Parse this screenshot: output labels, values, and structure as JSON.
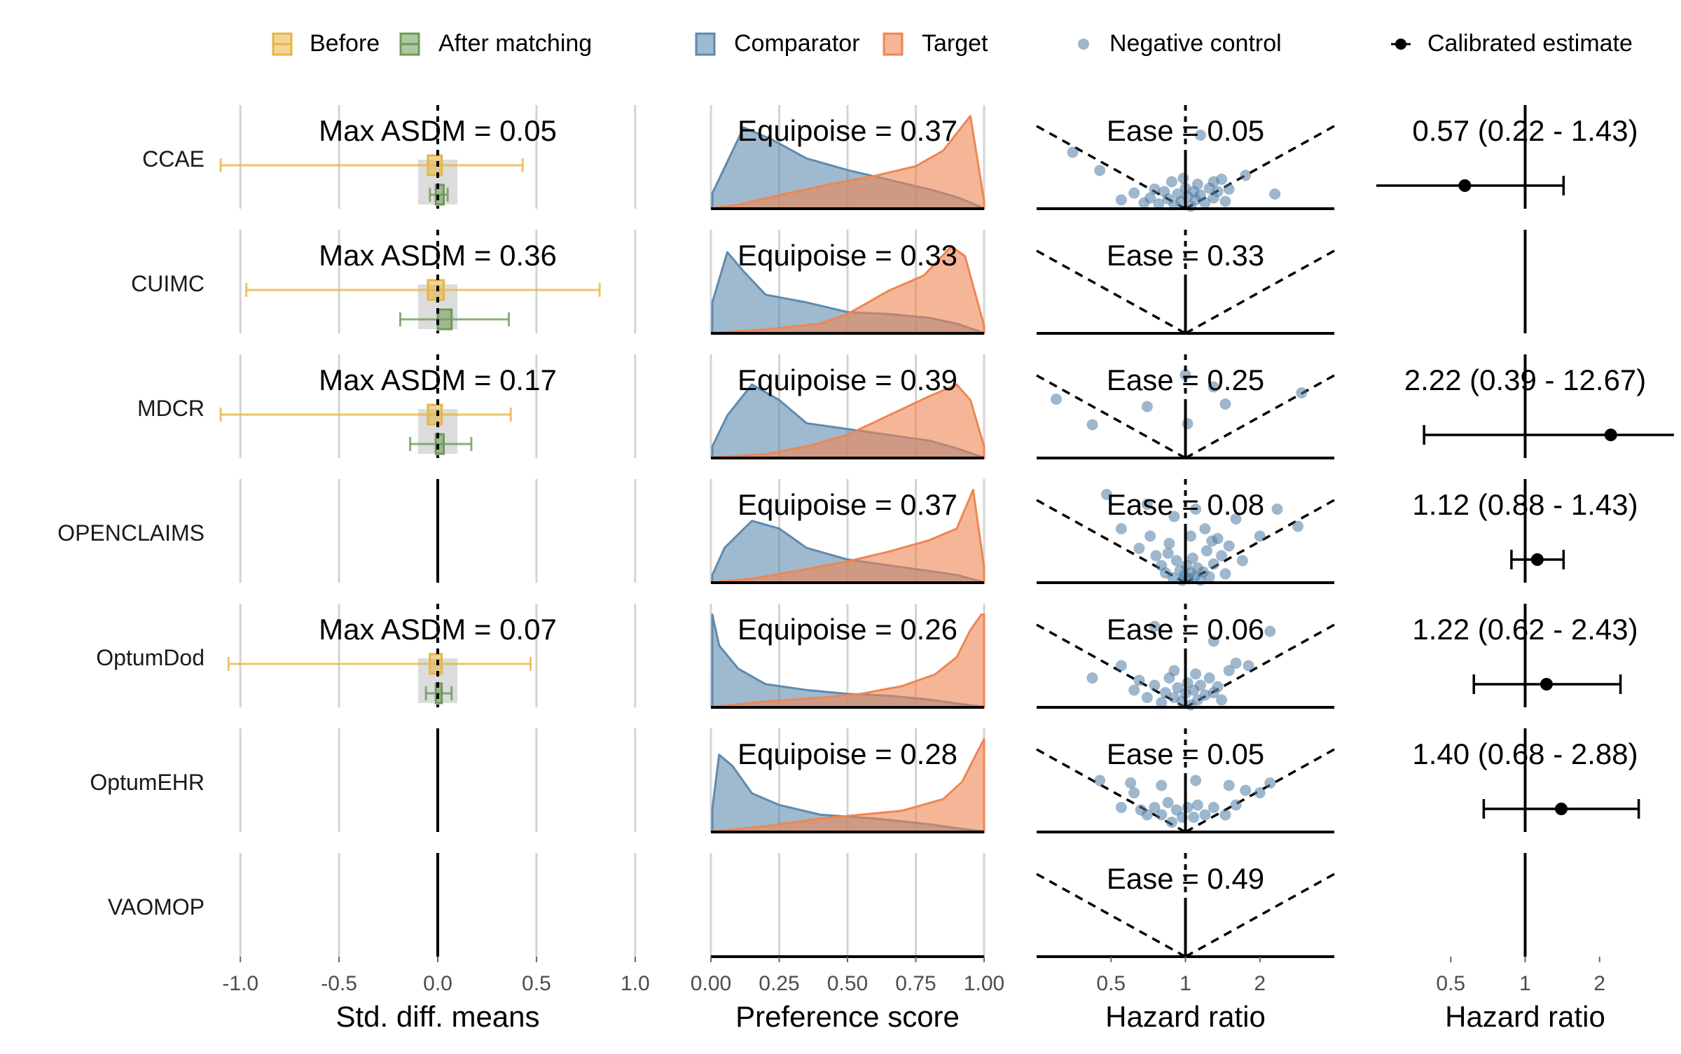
{
  "legends": {
    "balance": [
      {
        "label": "Before",
        "color": "#E8B542"
      },
      {
        "label": "After matching",
        "color": "#6E9A57"
      }
    ],
    "ps": [
      {
        "label": "Comparator",
        "color": "#5F8AAE"
      },
      {
        "label": "Target",
        "color": "#EE8653"
      }
    ],
    "nc": {
      "label": "Negative control",
      "color": "#4F7BA3"
    },
    "est": {
      "label": "Calibrated estimate",
      "color": "#000000"
    }
  },
  "axes": {
    "balance": {
      "xlabel": "Std. diff. means",
      "range": [
        -1.1,
        1.1
      ],
      "ticks": [
        -1.0,
        -0.5,
        0.0,
        0.5,
        1.0
      ],
      "tick_labels": [
        "-1.0",
        "-0.5",
        "0.0",
        "0.5",
        "1.0"
      ]
    },
    "ps": {
      "xlabel": "Preference score",
      "range": [
        0,
        1
      ],
      "ticks": [
        0,
        0.25,
        0.5,
        0.75,
        1
      ],
      "tick_labels": [
        "0.00",
        "0.25",
        "0.50",
        "0.75",
        "1.00"
      ]
    },
    "nc": {
      "xlabel": "Hazard ratio",
      "log_scale": true,
      "range": [
        0.25,
        4.0
      ],
      "ticks": [
        0.5,
        1,
        2
      ],
      "tick_labels": [
        "0.5",
        "1",
        "2"
      ]
    },
    "est": {
      "xlabel": "Hazard ratio",
      "log_scale": true,
      "range": [
        0.25,
        4.0
      ],
      "ticks": [
        0.5,
        1,
        2
      ],
      "tick_labels": [
        "0.5",
        "1",
        "2"
      ]
    }
  },
  "chart_data": {
    "type": "multi-panel",
    "rows": [
      {
        "name": "CCAE",
        "balance": {
          "label": "Max ASDM = 0.05",
          "before": {
            "box": [
              -0.05,
              0.02
            ],
            "range": [
              -1.1,
              0.43
            ]
          },
          "after": {
            "box": [
              -0.01,
              0.03
            ],
            "range": [
              -0.04,
              0.05
            ]
          }
        },
        "ps": {
          "label": "Equipoise = 0.37",
          "comparator": [
            0.005,
            0.4,
            0.12,
            2.1,
            0.22,
            1.8,
            0.35,
            1.3,
            0.5,
            1.0,
            0.65,
            0.75,
            0.8,
            0.5,
            0.9,
            0.3,
            1.0,
            0.01
          ],
          "target": [
            0.005,
            0.01,
            0.1,
            0.1,
            0.25,
            0.35,
            0.45,
            0.65,
            0.6,
            0.85,
            0.75,
            1.1,
            0.85,
            1.5,
            0.95,
            2.4,
            1.0,
            0.2
          ]
        },
        "nc": {
          "label": "Ease = 0.05",
          "points": [
            [
              0.35,
              1.15
            ],
            [
              0.45,
              0.78
            ],
            [
              0.55,
              0.18
            ],
            [
              0.62,
              0.32
            ],
            [
              0.68,
              0.12
            ],
            [
              0.72,
              0.22
            ],
            [
              0.78,
              0.1
            ],
            [
              0.82,
              0.35
            ],
            [
              0.85,
              0.2
            ],
            [
              0.88,
              0.55
            ],
            [
              0.9,
              0.08
            ],
            [
              0.93,
              0.3
            ],
            [
              0.96,
              0.15
            ],
            [
              1.0,
              0.42
            ],
            [
              1.02,
              0.25
            ],
            [
              1.05,
              0.05
            ],
            [
              1.08,
              0.35
            ],
            [
              1.1,
              0.18
            ],
            [
              1.12,
              0.5
            ],
            [
              1.15,
              0.28
            ],
            [
              1.2,
              0.12
            ],
            [
              1.25,
              0.42
            ],
            [
              1.3,
              0.22
            ],
            [
              1.35,
              0.35
            ],
            [
              1.4,
              0.6
            ],
            [
              1.45,
              0.15
            ],
            [
              1.5,
              0.4
            ],
            [
              1.3,
              0.55
            ],
            [
              0.75,
              0.4
            ],
            [
              1.75,
              0.68
            ],
            [
              2.3,
              0.3
            ],
            [
              1.15,
              1.5
            ],
            [
              0.98,
              0.62
            ]
          ]
        },
        "est": {
          "label": "0.57 (0.22 - 1.43)",
          "hr": 0.57,
          "lo": 0.22,
          "hi": 1.43
        }
      },
      {
        "name": "CUIMC",
        "balance": {
          "label": "Max ASDM = 0.36",
          "before": {
            "box": [
              -0.05,
              0.03
            ],
            "range": [
              -0.97,
              0.82
            ]
          },
          "after": {
            "box": [
              0.0,
              0.07
            ],
            "range": [
              -0.19,
              0.36
            ]
          }
        },
        "ps": {
          "label": "Equipoise = 0.33",
          "comparator": [
            0.005,
            0.8,
            0.06,
            2.1,
            0.12,
            1.6,
            0.2,
            1.0,
            0.35,
            0.8,
            0.5,
            0.55,
            0.65,
            0.5,
            0.8,
            0.4,
            0.9,
            0.25,
            1.0,
            0.01
          ],
          "target": [
            0.005,
            0.01,
            0.2,
            0.1,
            0.4,
            0.25,
            0.5,
            0.5,
            0.65,
            1.1,
            0.78,
            1.5,
            0.88,
            2.25,
            0.93,
            2.0,
            1.0,
            0.2
          ]
        },
        "nc": {
          "label": "Ease = 0.33",
          "points": []
        },
        "est": null
      },
      {
        "name": "MDCR",
        "balance": {
          "label": "Max ASDM = 0.17",
          "before": {
            "box": [
              -0.05,
              0.02
            ],
            "range": [
              -1.1,
              0.37
            ]
          },
          "after": {
            "box": [
              -0.01,
              0.03
            ],
            "range": [
              -0.14,
              0.17
            ]
          }
        },
        "ps": {
          "label": "Equipoise = 0.39",
          "comparator": [
            0.005,
            0.3,
            0.06,
            1.1,
            0.15,
            1.9,
            0.25,
            1.5,
            0.35,
            0.9,
            0.5,
            0.75,
            0.65,
            0.6,
            0.8,
            0.45,
            0.9,
            0.25,
            1.0,
            0.01
          ],
          "target": [
            0.005,
            0.01,
            0.2,
            0.1,
            0.35,
            0.3,
            0.5,
            0.6,
            0.65,
            1.1,
            0.8,
            1.6,
            0.9,
            1.9,
            0.95,
            1.5,
            1.0,
            0.3
          ]
        },
        "nc": {
          "label": "Ease = 0.25",
          "points": [
            [
              0.3,
              1.2
            ],
            [
              0.42,
              0.68
            ],
            [
              0.7,
              1.05
            ],
            [
              1.02,
              0.7
            ],
            [
              1.0,
              1.7
            ],
            [
              1.3,
              1.45
            ],
            [
              2.95,
              1.33
            ],
            [
              1.45,
              1.1
            ]
          ]
        },
        "est": {
          "label": "2.22 (0.39 - 12.67)",
          "hr": 2.22,
          "lo": 0.39,
          "hi": 12.67
        }
      },
      {
        "name": "OPENCLAIMS",
        "balance": null,
        "ps": {
          "label": "Equipoise = 0.37",
          "comparator": [
            0.005,
            0.2,
            0.05,
            0.9,
            0.15,
            1.6,
            0.25,
            1.4,
            0.35,
            0.9,
            0.5,
            0.6,
            0.65,
            0.45,
            0.8,
            0.3,
            0.9,
            0.2,
            1.0,
            0.01
          ],
          "target": [
            0.005,
            0.01,
            0.15,
            0.1,
            0.35,
            0.35,
            0.5,
            0.55,
            0.65,
            0.8,
            0.8,
            1.1,
            0.9,
            1.4,
            0.96,
            2.4,
            1.0,
            0.4
          ]
        },
        "nc": {
          "label": "Ease = 0.08",
          "points": [
            [
              0.48,
              1.8
            ],
            [
              0.55,
              1.1
            ],
            [
              0.65,
              0.7
            ],
            [
              0.72,
              0.95
            ],
            [
              0.76,
              0.55
            ],
            [
              0.8,
              0.35
            ],
            [
              0.83,
              0.2
            ],
            [
              0.86,
              0.8
            ],
            [
              0.89,
              0.1
            ],
            [
              0.92,
              0.45
            ],
            [
              0.95,
              0.25
            ],
            [
              0.97,
              0.05
            ],
            [
              0.99,
              0.15
            ],
            [
              1.01,
              0.35
            ],
            [
              1.03,
              0.08
            ],
            [
              1.05,
              0.2
            ],
            [
              1.07,
              0.5
            ],
            [
              1.09,
              0.12
            ],
            [
              1.12,
              0.3
            ],
            [
              1.15,
              0.05
            ],
            [
              1.18,
              0.22
            ],
            [
              1.22,
              0.65
            ],
            [
              1.25,
              0.12
            ],
            [
              1.3,
              0.38
            ],
            [
              1.35,
              0.9
            ],
            [
              1.4,
              0.55
            ],
            [
              1.45,
              0.18
            ],
            [
              1.5,
              0.75
            ],
            [
              1.7,
              0.45
            ],
            [
              2.0,
              0.95
            ],
            [
              2.35,
              1.5
            ],
            [
              2.85,
              1.15
            ],
            [
              1.1,
              1.5
            ],
            [
              0.7,
              1.6
            ],
            [
              0.9,
              1.35
            ],
            [
              1.2,
              1.1
            ],
            [
              1.6,
              1.3
            ],
            [
              1.05,
              0.95
            ],
            [
              0.85,
              0.6
            ],
            [
              1.28,
              0.85
            ]
          ]
        },
        "est": {
          "label": "1.12 (0.88 - 1.43)",
          "hr": 1.12,
          "lo": 0.88,
          "hi": 1.43
        }
      },
      {
        "name": "OptumDod",
        "balance": {
          "label": "Max ASDM = 0.07",
          "before": {
            "box": [
              -0.04,
              0.02
            ],
            "range": [
              -1.06,
              0.47
            ]
          },
          "after": {
            "box": [
              -0.01,
              0.02
            ],
            "range": [
              -0.06,
              0.07
            ]
          }
        },
        "ps": {
          "label": "Equipoise = 0.26",
          "comparator": [
            0.005,
            2.4,
            0.03,
            1.6,
            0.1,
            1.0,
            0.2,
            0.6,
            0.35,
            0.45,
            0.5,
            0.35,
            0.65,
            0.3,
            0.8,
            0.2,
            0.9,
            0.1,
            1.0,
            0.01
          ],
          "target": [
            0.005,
            0.01,
            0.2,
            0.15,
            0.4,
            0.25,
            0.55,
            0.35,
            0.7,
            0.55,
            0.82,
            0.85,
            0.9,
            1.3,
            0.95,
            2.0,
            0.99,
            2.4,
            1.0,
            2.4
          ]
        },
        "nc": {
          "label": "Ease = 0.06",
          "points": [
            [
              0.42,
              0.6
            ],
            [
              0.55,
              0.85
            ],
            [
              0.62,
              0.35
            ],
            [
              0.65,
              0.55
            ],
            [
              0.7,
              0.2
            ],
            [
              0.75,
              0.45
            ],
            [
              0.8,
              0.1
            ],
            [
              0.83,
              0.3
            ],
            [
              0.86,
              0.6
            ],
            [
              0.9,
              0.2
            ],
            [
              0.93,
              0.4
            ],
            [
              0.97,
              0.12
            ],
            [
              1.0,
              0.28
            ],
            [
              1.02,
              0.5
            ],
            [
              1.05,
              0.05
            ],
            [
              1.08,
              0.35
            ],
            [
              1.12,
              0.15
            ],
            [
              1.15,
              0.45
            ],
            [
              1.2,
              0.25
            ],
            [
              1.25,
              0.6
            ],
            [
              1.3,
              0.3
            ],
            [
              1.35,
              0.42
            ],
            [
              1.4,
              0.15
            ],
            [
              1.5,
              0.75
            ],
            [
              1.6,
              0.9
            ],
            [
              1.8,
              0.85
            ],
            [
              2.2,
              1.55
            ],
            [
              0.75,
              1.65
            ],
            [
              1.3,
              1.35
            ],
            [
              0.9,
              0.75
            ],
            [
              1.1,
              0.68
            ]
          ]
        },
        "est": {
          "label": "1.22 (0.62 - 2.43)",
          "hr": 1.22,
          "lo": 0.62,
          "hi": 2.43
        }
      },
      {
        "name": "OptumEHR",
        "balance": null,
        "ps": {
          "label": "Equipoise = 0.28",
          "comparator": [
            0.005,
            0.6,
            0.03,
            2.0,
            0.08,
            1.7,
            0.15,
            1.0,
            0.25,
            0.7,
            0.4,
            0.45,
            0.6,
            0.35,
            0.8,
            0.2,
            0.9,
            0.1,
            1.0,
            0.01
          ],
          "target": [
            0.005,
            0.01,
            0.2,
            0.15,
            0.4,
            0.35,
            0.55,
            0.45,
            0.7,
            0.55,
            0.85,
            0.85,
            0.92,
            1.3,
            0.97,
            2.0,
            1.0,
            2.4
          ]
        },
        "nc": {
          "label": "Ease = 0.05",
          "points": [
            [
              0.45,
              1.05
            ],
            [
              0.55,
              0.5
            ],
            [
              0.62,
              0.8
            ],
            [
              0.66,
              0.45
            ],
            [
              0.7,
              0.35
            ],
            [
              0.75,
              0.5
            ],
            [
              0.8,
              0.35
            ],
            [
              0.85,
              0.6
            ],
            [
              0.88,
              0.2
            ],
            [
              0.92,
              0.45
            ],
            [
              0.97,
              0.3
            ],
            [
              1.02,
              0.5
            ],
            [
              1.08,
              0.3
            ],
            [
              1.12,
              0.55
            ],
            [
              1.2,
              0.35
            ],
            [
              1.3,
              0.5
            ],
            [
              1.45,
              0.35
            ],
            [
              1.6,
              0.55
            ],
            [
              1.75,
              0.85
            ],
            [
              2.0,
              0.8
            ],
            [
              2.2,
              1.0
            ],
            [
              0.6,
              1.0
            ],
            [
              1.1,
              1.05
            ],
            [
              1.5,
              0.95
            ],
            [
              0.8,
              0.95
            ]
          ]
        },
        "est": {
          "label": "1.40 (0.68 - 2.88)",
          "hr": 1.4,
          "lo": 0.68,
          "hi": 2.88
        }
      },
      {
        "name": "VAOMOP",
        "balance": null,
        "ps": null,
        "nc": {
          "label": "Ease = 0.49",
          "points": []
        },
        "est": null
      }
    ]
  }
}
